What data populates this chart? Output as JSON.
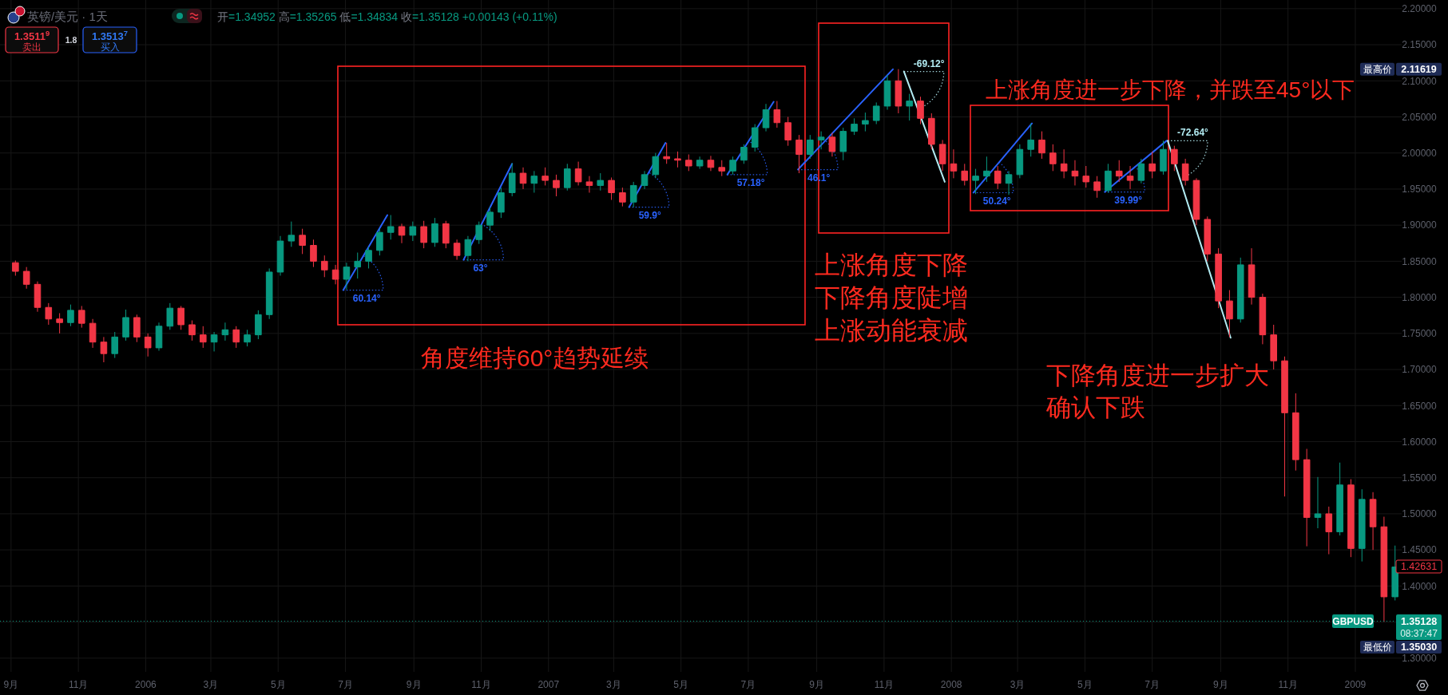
{
  "chart_data": {
    "type": "candlestick",
    "title": "英镑/美元 · 1天",
    "subtitle": "开=1.34952 高=1.35265 低=1.34834 收=1.35128 +0.00143 (+0.11%)",
    "x": [
      "2005-09-05",
      "2005-09-15",
      "2005-09-25",
      "2005-10-05",
      "2005-10-15",
      "2005-10-25",
      "2005-11-04",
      "2005-11-14",
      "2005-11-24",
      "2005-12-04",
      "2005-12-14",
      "2005-12-24",
      "2006-01-03",
      "2006-01-13",
      "2006-01-23",
      "2006-02-02",
      "2006-02-12",
      "2006-02-22",
      "2006-03-04",
      "2006-03-14",
      "2006-03-24",
      "2006-04-03",
      "2006-04-13",
      "2006-04-23",
      "2006-05-03",
      "2006-05-13",
      "2006-05-23",
      "2006-06-02",
      "2006-06-12",
      "2006-06-22",
      "2006-07-02",
      "2006-07-12",
      "2006-07-22",
      "2006-08-01",
      "2006-08-11",
      "2006-08-21",
      "2006-08-31",
      "2006-09-10",
      "2006-09-20",
      "2006-09-30",
      "2006-10-10",
      "2006-10-20",
      "2006-10-30",
      "2006-11-09",
      "2006-11-19",
      "2006-11-29",
      "2006-12-09",
      "2006-12-19",
      "2006-12-29",
      "2007-01-08",
      "2007-01-18",
      "2007-01-28",
      "2007-02-07",
      "2007-02-17",
      "2007-02-27",
      "2007-03-09",
      "2007-03-19",
      "2007-03-29",
      "2007-04-08",
      "2007-04-18",
      "2007-04-28",
      "2007-05-08",
      "2007-05-18",
      "2007-05-28",
      "2007-06-07",
      "2007-06-17",
      "2007-06-27",
      "2007-07-07",
      "2007-07-17",
      "2007-07-27",
      "2007-08-06",
      "2007-08-16",
      "2007-08-26",
      "2007-09-05",
      "2007-09-15",
      "2007-09-25",
      "2007-10-05",
      "2007-10-15",
      "2007-10-25",
      "2007-11-04",
      "2007-11-14",
      "2007-11-24",
      "2007-12-04",
      "2007-12-14",
      "2007-12-24",
      "2008-01-03",
      "2008-01-13",
      "2008-01-23",
      "2008-02-02",
      "2008-02-12",
      "2008-02-22",
      "2008-03-03",
      "2008-03-13",
      "2008-03-23",
      "2008-04-02",
      "2008-04-12",
      "2008-04-22",
      "2008-05-02",
      "2008-05-12",
      "2008-05-22",
      "2008-06-01",
      "2008-06-11",
      "2008-06-21",
      "2008-07-01",
      "2008-07-11",
      "2008-07-21",
      "2008-07-31",
      "2008-08-10",
      "2008-08-20",
      "2008-08-30",
      "2008-09-09",
      "2008-09-19",
      "2008-09-29",
      "2008-10-09",
      "2008-10-19",
      "2008-10-29",
      "2008-11-08",
      "2008-11-18",
      "2008-11-28",
      "2008-12-08",
      "2008-12-18",
      "2008-12-28",
      "2009-01-07",
      "2009-01-17",
      "2009-01-27",
      "2009-02-06"
    ],
    "ohlc": [
      [
        1.848,
        1.851,
        1.83,
        1.836
      ],
      [
        1.836,
        1.842,
        1.812,
        1.818
      ],
      [
        1.818,
        1.822,
        1.78,
        1.786
      ],
      [
        1.786,
        1.792,
        1.762,
        1.77
      ],
      [
        1.77,
        1.778,
        1.75,
        1.765
      ],
      [
        1.765,
        1.79,
        1.76,
        1.782
      ],
      [
        1.782,
        1.788,
        1.758,
        1.764
      ],
      [
        1.764,
        1.77,
        1.73,
        1.738
      ],
      [
        1.738,
        1.745,
        1.71,
        1.722
      ],
      [
        1.722,
        1.752,
        1.716,
        1.745
      ],
      [
        1.745,
        1.783,
        1.74,
        1.772
      ],
      [
        1.772,
        1.776,
        1.738,
        1.745
      ],
      [
        1.745,
        1.75,
        1.718,
        1.73
      ],
      [
        1.73,
        1.765,
        1.726,
        1.76
      ],
      [
        1.76,
        1.792,
        1.755,
        1.785
      ],
      [
        1.785,
        1.788,
        1.755,
        1.762
      ],
      [
        1.762,
        1.768,
        1.74,
        1.748
      ],
      [
        1.748,
        1.76,
        1.73,
        1.738
      ],
      [
        1.738,
        1.752,
        1.725,
        1.748
      ],
      [
        1.748,
        1.765,
        1.74,
        1.755
      ],
      [
        1.755,
        1.76,
        1.73,
        1.738
      ],
      [
        1.738,
        1.755,
        1.732,
        1.748
      ],
      [
        1.748,
        1.782,
        1.742,
        1.776
      ],
      [
        1.776,
        1.84,
        1.77,
        1.835
      ],
      [
        1.835,
        1.885,
        1.83,
        1.878
      ],
      [
        1.878,
        1.905,
        1.87,
        1.886
      ],
      [
        1.886,
        1.895,
        1.86,
        1.872
      ],
      [
        1.872,
        1.88,
        1.842,
        1.85
      ],
      [
        1.85,
        1.858,
        1.828,
        1.838
      ],
      [
        1.838,
        1.845,
        1.818,
        1.825
      ],
      [
        1.825,
        1.848,
        1.811,
        1.842
      ],
      [
        1.842,
        1.862,
        1.826,
        1.85
      ],
      [
        1.85,
        1.87,
        1.84,
        1.865
      ],
      [
        1.865,
        1.895,
        1.858,
        1.89
      ],
      [
        1.89,
        1.914,
        1.88,
        1.898
      ],
      [
        1.898,
        1.902,
        1.875,
        1.886
      ],
      [
        1.886,
        1.905,
        1.878,
        1.898
      ],
      [
        1.898,
        1.906,
        1.868,
        1.876
      ],
      [
        1.876,
        1.91,
        1.87,
        1.902
      ],
      [
        1.902,
        1.906,
        1.868,
        1.875
      ],
      [
        1.875,
        1.88,
        1.852,
        1.858
      ],
      [
        1.858,
        1.885,
        1.85,
        1.88
      ],
      [
        1.88,
        1.905,
        1.874,
        1.9
      ],
      [
        1.9,
        1.925,
        1.892,
        1.918
      ],
      [
        1.918,
        1.952,
        1.91,
        1.945
      ],
      [
        1.945,
        1.986,
        1.94,
        1.972
      ],
      [
        1.972,
        1.98,
        1.95,
        1.958
      ],
      [
        1.958,
        1.975,
        1.945,
        1.968
      ],
      [
        1.968,
        1.98,
        1.955,
        1.962
      ],
      [
        1.962,
        1.97,
        1.94,
        1.952
      ],
      [
        1.952,
        1.985,
        1.948,
        1.978
      ],
      [
        1.978,
        1.988,
        1.955,
        1.96
      ],
      [
        1.96,
        1.968,
        1.945,
        1.955
      ],
      [
        1.955,
        1.972,
        1.948,
        1.962
      ],
      [
        1.962,
        1.966,
        1.935,
        1.945
      ],
      [
        1.945,
        1.952,
        1.926,
        1.932
      ],
      [
        1.932,
        1.96,
        1.925,
        1.955
      ],
      [
        1.955,
        1.975,
        1.95,
        1.97
      ],
      [
        1.97,
        2.0,
        1.965,
        1.995
      ],
      [
        1.995,
        2.014,
        1.985,
        1.992
      ],
      [
        1.992,
        2.002,
        1.98,
        1.99
      ],
      [
        1.99,
        1.998,
        1.975,
        1.982
      ],
      [
        1.982,
        1.995,
        1.978,
        1.99
      ],
      [
        1.99,
        1.996,
        1.975,
        1.98
      ],
      [
        1.98,
        1.99,
        1.968,
        1.975
      ],
      [
        1.975,
        1.995,
        1.97,
        1.99
      ],
      [
        1.99,
        2.012,
        1.985,
        2.008
      ],
      [
        2.008,
        2.04,
        2.002,
        2.035
      ],
      [
        2.035,
        2.068,
        2.03,
        2.06
      ],
      [
        2.06,
        2.072,
        2.035,
        2.042
      ],
      [
        2.042,
        2.05,
        2.01,
        2.018
      ],
      [
        2.018,
        2.025,
        1.972,
        1.998
      ],
      [
        1.998,
        2.025,
        1.992,
        2.018
      ],
      [
        2.018,
        2.03,
        2.005,
        2.022
      ],
      [
        2.022,
        2.028,
        1.995,
        2.002
      ],
      [
        2.002,
        2.035,
        1.99,
        2.03
      ],
      [
        2.03,
        2.048,
        2.025,
        2.04
      ],
      [
        2.04,
        2.056,
        2.03,
        2.045
      ],
      [
        2.045,
        2.07,
        2.04,
        2.065
      ],
      [
        2.065,
        2.108,
        2.06,
        2.1
      ],
      [
        2.1,
        2.11619,
        2.055,
        2.065
      ],
      [
        2.065,
        2.082,
        2.045,
        2.072
      ],
      [
        2.072,
        2.078,
        2.04,
        2.048
      ],
      [
        2.048,
        2.055,
        2.005,
        2.012
      ],
      [
        2.012,
        2.018,
        1.975,
        1.985
      ],
      [
        1.985,
        2.005,
        1.965,
        1.975
      ],
      [
        1.975,
        1.985,
        1.955,
        1.962
      ],
      [
        1.962,
        1.978,
        1.943,
        1.968
      ],
      [
        1.968,
        1.995,
        1.96,
        1.975
      ],
      [
        1.975,
        1.982,
        1.95,
        1.958
      ],
      [
        1.958,
        1.975,
        1.942,
        1.97
      ],
      [
        1.97,
        2.012,
        1.965,
        2.005
      ],
      [
        2.005,
        2.041,
        1.995,
        2.018
      ],
      [
        2.018,
        2.03,
        1.992,
        2.0
      ],
      [
        2.0,
        2.012,
        1.975,
        1.985
      ],
      [
        1.985,
        2.005,
        1.965,
        1.975
      ],
      [
        1.975,
        1.99,
        1.955,
        1.968
      ],
      [
        1.968,
        1.982,
        1.952,
        1.96
      ],
      [
        1.96,
        1.968,
        1.938,
        1.948
      ],
      [
        1.948,
        1.985,
        1.945,
        1.975
      ],
      [
        1.975,
        1.99,
        1.96,
        1.968
      ],
      [
        1.968,
        1.982,
        1.95,
        1.962
      ],
      [
        1.962,
        1.992,
        1.958,
        1.985
      ],
      [
        1.985,
        2.002,
        1.965,
        1.975
      ],
      [
        1.975,
        2.017,
        1.97,
        2.005
      ],
      [
        2.005,
        2.01,
        1.975,
        1.985
      ],
      [
        1.985,
        1.992,
        1.955,
        1.962
      ],
      [
        1.962,
        1.965,
        1.9,
        1.908
      ],
      [
        1.908,
        1.912,
        1.85,
        1.86
      ],
      [
        1.86,
        1.868,
        1.785,
        1.795
      ],
      [
        1.795,
        1.81,
        1.745,
        1.77
      ],
      [
        1.77,
        1.855,
        1.765,
        1.845
      ],
      [
        1.845,
        1.868,
        1.79,
        1.8
      ],
      [
        1.8,
        1.805,
        1.735,
        1.748
      ],
      [
        1.748,
        1.762,
        1.7,
        1.712
      ],
      [
        1.712,
        1.718,
        1.524,
        1.64
      ],
      [
        1.64,
        1.667,
        1.56,
        1.575
      ],
      [
        1.575,
        1.59,
        1.455,
        1.495
      ],
      [
        1.495,
        1.551,
        1.48,
        1.5
      ],
      [
        1.5,
        1.51,
        1.444,
        1.475
      ],
      [
        1.475,
        1.571,
        1.47,
        1.54
      ],
      [
        1.54,
        1.548,
        1.44,
        1.452
      ],
      [
        1.452,
        1.534,
        1.434,
        1.52
      ],
      [
        1.52,
        1.53,
        1.45,
        1.482
      ],
      [
        1.482,
        1.496,
        1.3503,
        1.385
      ],
      [
        1.385,
        1.456,
        1.38,
        1.42631
      ]
    ],
    "series": [
      {
        "type": "line",
        "name": "60.14°",
        "color": "#2962ff",
        "x": [
          "2006-06-29",
          "2006-08-08"
        ],
        "values": [
          1.81,
          1.914
        ]
      },
      {
        "type": "line",
        "name": "63°",
        "color": "#2962ff",
        "x": [
          "2006-10-16",
          "2006-11-29"
        ],
        "values": [
          1.852,
          1.985
        ]
      },
      {
        "type": "line",
        "name": "59.9°",
        "color": "#2962ff",
        "x": [
          "2007-03-15",
          "2007-04-17"
        ],
        "values": [
          1.925,
          2.014
        ]
      },
      {
        "type": "line",
        "name": "57.18°",
        "color": "#2962ff",
        "x": [
          "2007-06-12",
          "2007-07-24"
        ],
        "values": [
          1.97,
          2.071
        ]
      },
      {
        "type": "line",
        "name": "46.1°",
        "color": "#2962ff",
        "x": [
          "2007-08-15",
          "2007-11-09"
        ],
        "values": [
          1.977,
          2.116
        ]
      },
      {
        "type": "line",
        "name": "-69.12°",
        "color": "#b2ebf2",
        "x": [
          "2007-11-19",
          "2007-12-26"
        ],
        "values": [
          2.113,
          1.96
        ]
      },
      {
        "type": "line",
        "name": "50.24°",
        "color": "#2962ff",
        "x": [
          "2008-01-21",
          "2008-03-14"
        ],
        "values": [
          1.945,
          2.041
        ]
      },
      {
        "type": "line",
        "name": "39.99°",
        "color": "#2962ff",
        "x": [
          "2008-05-19",
          "2008-07-14"
        ],
        "values": [
          1.946,
          2.017
        ]
      },
      {
        "type": "line",
        "name": "-72.64°",
        "color": "#b2ebf2",
        "x": [
          "2008-07-15",
          "2008-09-10"
        ],
        "values": [
          2.017,
          1.744
        ]
      }
    ],
    "xlim": [
      "2005-08-22",
      "2009-02-12"
    ],
    "xticks": [
      {
        "value": "2005-09-01",
        "label": "9月"
      },
      {
        "value": "2005-11-01",
        "label": "11月"
      },
      {
        "value": "2006-01-01",
        "label": "2006"
      },
      {
        "value": "2006-03-01",
        "label": "3月"
      },
      {
        "value": "2006-05-01",
        "label": "5月"
      },
      {
        "value": "2006-07-01",
        "label": "7月"
      },
      {
        "value": "2006-09-01",
        "label": "9月"
      },
      {
        "value": "2006-11-01",
        "label": "11月"
      },
      {
        "value": "2007-01-01",
        "label": "2007"
      },
      {
        "value": "2007-03-01",
        "label": "3月"
      },
      {
        "value": "2007-05-01",
        "label": "5月"
      },
      {
        "value": "2007-07-01",
        "label": "7月"
      },
      {
        "value": "2007-09-01",
        "label": "9月"
      },
      {
        "value": "2007-11-01",
        "label": "11月"
      },
      {
        "value": "2008-01-01",
        "label": "2008"
      },
      {
        "value": "2008-03-01",
        "label": "3月"
      },
      {
        "value": "2008-05-01",
        "label": "5月"
      },
      {
        "value": "2008-07-01",
        "label": "7月"
      },
      {
        "value": "2008-09-01",
        "label": "9月"
      },
      {
        "value": "2008-11-01",
        "label": "11月"
      },
      {
        "value": "2009-01-01",
        "label": "2009"
      }
    ],
    "ylim": [
      1.281,
      2.212
    ],
    "yticks": [
      {
        "value": 1.3,
        "label": "1.30000"
      },
      {
        "value": 1.35,
        "label": null
      },
      {
        "value": 1.4,
        "label": "1.40000"
      },
      {
        "value": 1.45,
        "label": "1.45000"
      },
      {
        "value": 1.5,
        "label": "1.50000"
      },
      {
        "value": 1.55,
        "label": "1.55000"
      },
      {
        "value": 1.6,
        "label": "1.60000"
      },
      {
        "value": 1.65,
        "label": "1.65000"
      },
      {
        "value": 1.7,
        "label": "1.70000"
      },
      {
        "value": 1.75,
        "label": "1.75000"
      },
      {
        "value": 1.8,
        "label": "1.80000"
      },
      {
        "value": 1.85,
        "label": "1.85000"
      },
      {
        "value": 1.9,
        "label": "1.90000"
      },
      {
        "value": 1.95,
        "label": "1.95000"
      },
      {
        "value": 2.0,
        "label": "2.00000"
      },
      {
        "value": 2.05,
        "label": "2.05000"
      },
      {
        "value": 2.1,
        "label": "2.10000"
      },
      {
        "value": 2.15,
        "label": "2.15000"
      },
      {
        "value": 2.2,
        "label": "2.20000"
      }
    ],
    "grid": true,
    "ref_lines": [
      {
        "axis": "y",
        "value": 1.35128,
        "label": "GBPUSD",
        "color": "#089981",
        "line_style": "dotted"
      }
    ],
    "annotations": [
      "1.3511$^{9}$",
      "卖出",
      "1.8",
      "1.3513$^{7}$",
      "买入",
      "角度维持60°趋势延续",
      "上涨角度下降",
      "下降角度陡增",
      "上涨动能衰减",
      "上涨角度进一步下降，并跌至45°以下",
      "下降角度进一步扩大",
      "确认下跌",
      "1.35128",
      "08:37:47",
      "2.11619",
      "1.35030",
      "1.42631",
      {
        "text": "最高价",
        "y": 2.11619
      },
      {
        "text": "最低价",
        "y": 1.3503
      }
    ]
  }
}
